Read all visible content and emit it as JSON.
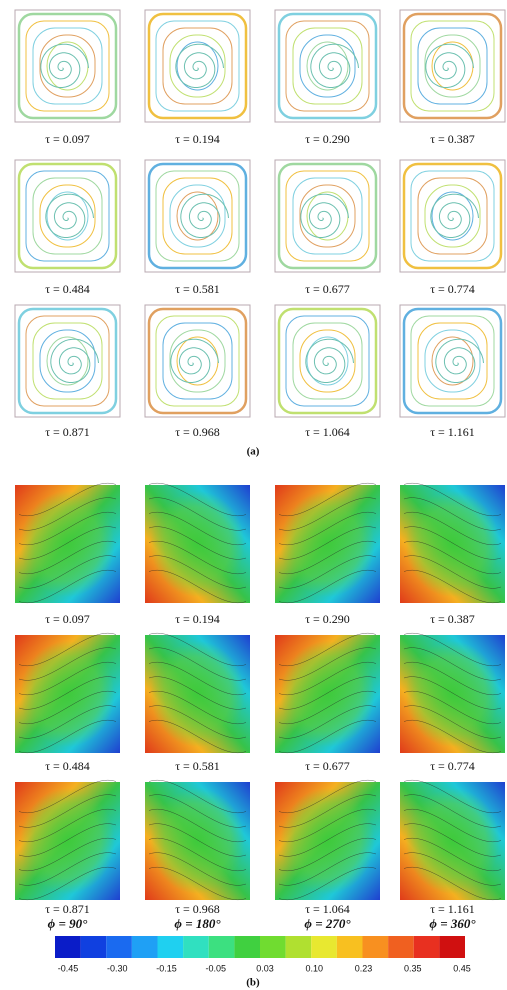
{
  "panel_a": {
    "labels": [
      "τ = 0.097",
      "τ = 0.194",
      "τ = 0.290",
      "τ = 0.387",
      "τ = 0.484",
      "τ = 0.581",
      "τ = 0.677",
      "τ = 0.774",
      "τ = 0.871",
      "τ = 0.968",
      "τ = 1.064",
      "τ = 1.161"
    ],
    "caption": "(a)"
  },
  "panel_b": {
    "labels": [
      "τ = 0.097",
      "τ = 0.194",
      "τ = 0.290",
      "τ = 0.387",
      "τ = 0.484",
      "τ = 0.581",
      "τ = 0.677",
      "τ = 0.774",
      "τ = 0.871",
      "τ = 0.968",
      "τ = 1.064",
      "τ = 1.161"
    ],
    "angles": [
      "ϕ = 90°",
      "ϕ = 180°",
      "ϕ = 270°",
      "ϕ = 360°"
    ],
    "colorbar_ticks": [
      "-0.45",
      "-0.30",
      "-0.15",
      "-0.05",
      "0.03",
      "0.10",
      "0.23",
      "0.35",
      "0.45"
    ],
    "caption": "(b)"
  }
}
